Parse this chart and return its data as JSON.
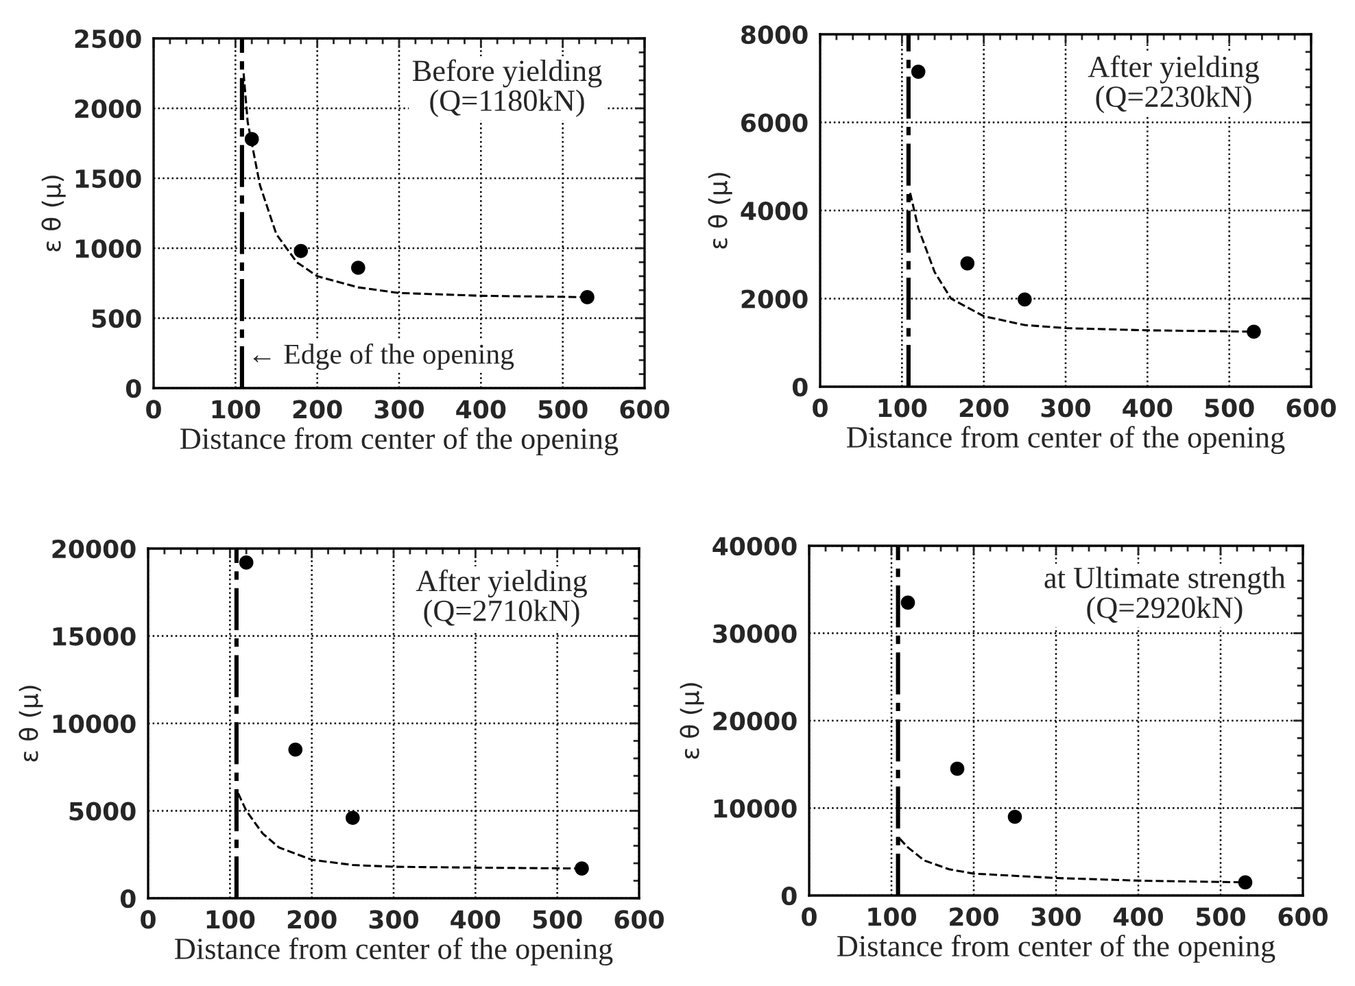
{
  "chart_data": [
    {
      "type": "scatter",
      "title": "Before yielding\n(Q=1180kN)",
      "xlabel": "Distance from center of the opening",
      "ylabel": "ε θ (μ)",
      "xlim": [
        0,
        600
      ],
      "xticks": [
        0,
        100,
        200,
        300,
        400,
        500,
        600
      ],
      "ylim": [
        0,
        2500
      ],
      "yticks": [
        0,
        500,
        1000,
        1500,
        2000,
        2500
      ],
      "grid": true,
      "ref_lines": [
        {
          "axis": "x",
          "value": 108,
          "label": "← Edge of the opening",
          "line_style": "dashed",
          "color": "#000000"
        }
      ],
      "series": [
        {
          "marker": "circle",
          "color": "#000000",
          "x": [
            120,
            180,
            250,
            530
          ],
          "values": [
            1780,
            980,
            860,
            650
          ]
        },
        {
          "type": "line",
          "marker": "none",
          "line_style": "dashed",
          "color": "#000000",
          "x": [
            110,
            115,
            130,
            150,
            175,
            200,
            250,
            300,
            400,
            530
          ],
          "values": [
            2250,
            1900,
            1450,
            1100,
            900,
            800,
            720,
            680,
            660,
            650
          ]
        }
      ]
    },
    {
      "type": "scatter",
      "title": "After yielding\n(Q=2230kN)",
      "xlabel": "Distance from center of the opening",
      "ylabel": "ε θ (μ)",
      "xlim": [
        0,
        600
      ],
      "xticks": [
        0,
        100,
        200,
        300,
        400,
        500,
        600
      ],
      "ylim": [
        0,
        8000
      ],
      "yticks": [
        0,
        2000,
        4000,
        6000,
        8000
      ],
      "grid": true,
      "ref_lines": [
        {
          "axis": "x",
          "value": 108,
          "line_style": "dashed",
          "color": "#000000"
        }
      ],
      "series": [
        {
          "marker": "circle",
          "color": "#000000",
          "x": [
            120,
            180,
            250,
            530
          ],
          "values": [
            7150,
            2800,
            1980,
            1250
          ]
        },
        {
          "type": "line",
          "marker": "none",
          "line_style": "dashed",
          "color": "#000000",
          "x": [
            110,
            120,
            140,
            160,
            200,
            250,
            300,
            400,
            530
          ],
          "values": [
            4400,
            3600,
            2600,
            2000,
            1600,
            1400,
            1330,
            1280,
            1250
          ]
        }
      ]
    },
    {
      "type": "scatter",
      "title": "After yielding\n(Q=2710kN)",
      "xlabel": "Distance from center of the opening",
      "ylabel": "ε θ (μ)",
      "xlim": [
        0,
        600
      ],
      "xticks": [
        0,
        100,
        200,
        300,
        400,
        500,
        600
      ],
      "ylim": [
        0,
        20000
      ],
      "yticks": [
        0,
        5000,
        10000,
        15000,
        20000
      ],
      "grid": true,
      "ref_lines": [
        {
          "axis": "x",
          "value": 108,
          "line_style": "dashed",
          "color": "#000000"
        }
      ],
      "series": [
        {
          "marker": "circle",
          "color": "#000000",
          "x": [
            120,
            180,
            250,
            530
          ],
          "values": [
            19200,
            8500,
            4600,
            1700
          ]
        },
        {
          "type": "line",
          "marker": "none",
          "line_style": "dashed",
          "color": "#000000",
          "x": [
            110,
            120,
            140,
            160,
            200,
            250,
            300,
            400,
            530
          ],
          "values": [
            6000,
            5000,
            3700,
            2900,
            2200,
            1900,
            1800,
            1750,
            1700
          ]
        }
      ]
    },
    {
      "type": "scatter",
      "title": "at Ultimate strength\n(Q=2920kN)",
      "xlabel": "Distance from center of the opening",
      "ylabel": "ε θ (μ)",
      "xlim": [
        0,
        600
      ],
      "xticks": [
        0,
        100,
        200,
        300,
        400,
        500,
        600
      ],
      "ylim": [
        0,
        40000
      ],
      "yticks": [
        0,
        10000,
        20000,
        30000,
        40000
      ],
      "grid": true,
      "ref_lines": [
        {
          "axis": "x",
          "value": 108,
          "line_style": "dashed",
          "color": "#000000"
        }
      ],
      "series": [
        {
          "marker": "circle",
          "color": "#000000",
          "x": [
            120,
            180,
            250,
            530
          ],
          "values": [
            33500,
            14500,
            9000,
            1500
          ]
        },
        {
          "type": "line",
          "marker": "none",
          "line_style": "dashed",
          "color": "#000000",
          "x": [
            110,
            120,
            140,
            170,
            200,
            300,
            400,
            530
          ],
          "values": [
            6500,
            5500,
            4000,
            3000,
            2500,
            2000,
            1700,
            1500
          ]
        }
      ]
    }
  ]
}
